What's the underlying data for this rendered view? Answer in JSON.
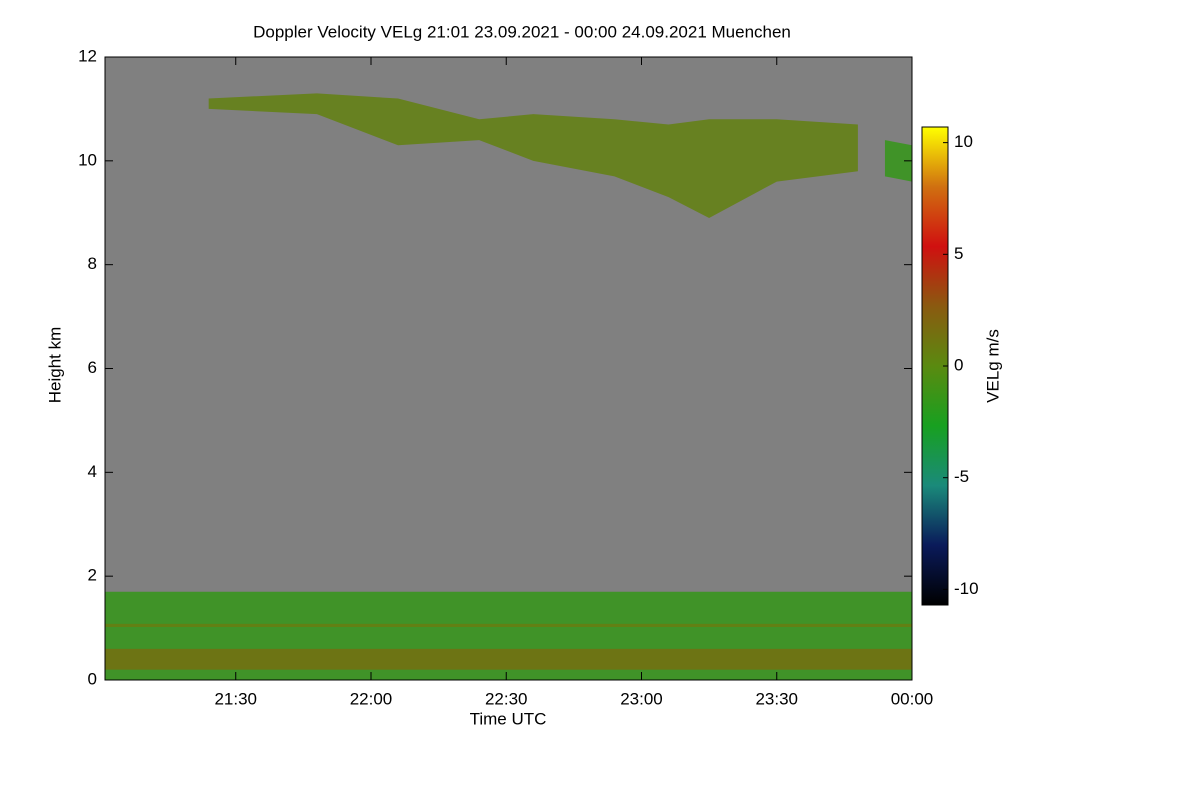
{
  "chart_data": {
    "type": "time-height",
    "title": "Doppler Velocity VELg   21:01 23.09.2021 - 00:00 24.09.2021 Muenchen",
    "x_label": "Time UTC",
    "y_label": "Height km",
    "colorbar_label": "VELg m/s",
    "background": "#808080",
    "xlim": [
      21.0167,
      24
    ],
    "xticks": [
      {
        "value": 21.5,
        "label": "21:30"
      },
      {
        "value": 22,
        "label": "22:00"
      },
      {
        "value": 22.5,
        "label": "22:30"
      },
      {
        "value": 23,
        "label": "23:00"
      },
      {
        "value": 23.5,
        "label": "23:30"
      },
      {
        "value": 24,
        "label": "00:00"
      }
    ],
    "ylim": [
      0,
      12
    ],
    "yticks": [
      0,
      2,
      4,
      6,
      8,
      10,
      12
    ],
    "clim": [
      -10.7,
      10.7
    ],
    "cticks": [
      -10,
      -5,
      0,
      5,
      10
    ],
    "colormap": [
      "#000000",
      "#0a1a5a",
      "#1a8a7a",
      "#18a020",
      "#5a8a10",
      "#8a5a10",
      "#d01010",
      "#d07010",
      "#ffff00"
    ],
    "regions": [
      {
        "x": [
          21.4,
          21.8,
          22.1,
          22.4,
          22.6,
          22.9,
          23.1,
          23.25,
          23.5,
          23.8
        ],
        "top": [
          11.2,
          11.3,
          11.2,
          10.8,
          10.9,
          10.8,
          10.7,
          10.8,
          10.8,
          10.7
        ],
        "bottom": [
          11.0,
          10.9,
          10.3,
          10.4,
          10.0,
          9.7,
          9.3,
          8.9,
          9.6,
          9.8
        ],
        "value": 0.5
      },
      {
        "x": [
          23.9,
          24
        ],
        "top": [
          10.4,
          10.3
        ],
        "bottom": [
          9.7,
          9.6
        ],
        "value": -1.5
      },
      {
        "x": [
          21.0167,
          24
        ],
        "top": [
          1.7,
          1.7
        ],
        "bottom": [
          0,
          0
        ],
        "value": -1.5
      },
      {
        "x": [
          21.0167,
          24
        ],
        "top": [
          0.6,
          0.6
        ],
        "bottom": [
          0.2,
          0.2
        ],
        "value": 1.5
      },
      {
        "x": [
          21.0167,
          24
        ],
        "top": [
          1.08,
          1.08
        ],
        "bottom": [
          1.02,
          1.02
        ],
        "value": 0.8
      }
    ]
  }
}
